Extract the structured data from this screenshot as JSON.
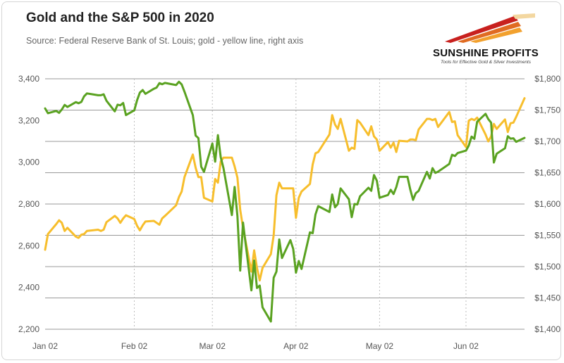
{
  "title": "Gold and the S&P 500 in 2020",
  "subtitle": "Source: Federal Reserve Bank of St. Louis; gold - yellow line, right axis",
  "logo": {
    "name": "SUNSHINE PROFITS",
    "tagline": "Tools for Effective Gold & Silver Investments"
  },
  "colors": {
    "gold_line": "#f7be2c",
    "sp500_line": "#5aa221",
    "grid": "#9a9a9a",
    "plot_bg": "#ffffff",
    "logo_red": "#c8201e"
  },
  "chart_data": {
    "type": "line",
    "title": "Gold and the S&P 500 in 2020",
    "x_tick_labels": [
      "Jan 02",
      "Feb 02",
      "Mar 02",
      "Apr 02",
      "May 02",
      "Jun 02"
    ],
    "x_range": [
      "2020-01-02",
      "2020-06-22"
    ],
    "left_axis": {
      "ylim": [
        2200,
        3400
      ],
      "ticks": [
        2200,
        2400,
        2600,
        2800,
        3000,
        3200,
        3400
      ],
      "tick_labels": [
        "2,200",
        "2,400",
        "2,600",
        "2,800",
        "3,000",
        "3,200",
        "3,400"
      ]
    },
    "right_axis": {
      "ylim": [
        1400,
        1800
      ],
      "ticks": [
        1400,
        1450,
        1500,
        1550,
        1600,
        1650,
        1700,
        1750,
        1800
      ],
      "tick_labels": [
        "$1,400",
        "$1,450",
        "$1,500",
        "$1,550",
        "$1,600",
        "$1,650",
        "$1,700",
        "$1,750",
        "$1,800"
      ]
    },
    "grid": true,
    "legend": "none",
    "series": [
      {
        "axis": "left",
        "color": "#5aa221",
        "points": [
          [
            "2020-01-02",
            3258
          ],
          [
            "2020-01-03",
            3235
          ],
          [
            "2020-01-06",
            3246
          ],
          [
            "2020-01-07",
            3237
          ],
          [
            "2020-01-08",
            3253
          ],
          [
            "2020-01-09",
            3275
          ],
          [
            "2020-01-10",
            3265
          ],
          [
            "2020-01-13",
            3288
          ],
          [
            "2020-01-14",
            3283
          ],
          [
            "2020-01-15",
            3289
          ],
          [
            "2020-01-16",
            3316
          ],
          [
            "2020-01-17",
            3330
          ],
          [
            "2020-01-21",
            3321
          ],
          [
            "2020-01-22",
            3321
          ],
          [
            "2020-01-23",
            3326
          ],
          [
            "2020-01-24",
            3295
          ],
          [
            "2020-01-27",
            3244
          ],
          [
            "2020-01-28",
            3276
          ],
          [
            "2020-01-29",
            3273
          ],
          [
            "2020-01-30",
            3284
          ],
          [
            "2020-01-31",
            3226
          ],
          [
            "2020-02-03",
            3249
          ],
          [
            "2020-02-04",
            3298
          ],
          [
            "2020-02-05",
            3334
          ],
          [
            "2020-02-06",
            3346
          ],
          [
            "2020-02-07",
            3328
          ],
          [
            "2020-02-10",
            3352
          ],
          [
            "2020-02-11",
            3358
          ],
          [
            "2020-02-12",
            3379
          ],
          [
            "2020-02-13",
            3374
          ],
          [
            "2020-02-14",
            3380
          ],
          [
            "2020-02-18",
            3370
          ],
          [
            "2020-02-19",
            3386
          ],
          [
            "2020-02-20",
            3373
          ],
          [
            "2020-02-21",
            3338
          ],
          [
            "2020-02-24",
            3226
          ],
          [
            "2020-02-25",
            3128
          ],
          [
            "2020-02-26",
            3116
          ],
          [
            "2020-02-27",
            2979
          ],
          [
            "2020-02-28",
            2954
          ],
          [
            "2020-03-02",
            3090
          ],
          [
            "2020-03-03",
            3003
          ],
          [
            "2020-03-04",
            3130
          ],
          [
            "2020-03-05",
            3024
          ],
          [
            "2020-03-06",
            2972
          ],
          [
            "2020-03-09",
            2747
          ],
          [
            "2020-03-10",
            2882
          ],
          [
            "2020-03-11",
            2741
          ],
          [
            "2020-03-12",
            2481
          ],
          [
            "2020-03-13",
            2711
          ],
          [
            "2020-03-16",
            2386
          ],
          [
            "2020-03-17",
            2529
          ],
          [
            "2020-03-18",
            2398
          ],
          [
            "2020-03-19",
            2409
          ],
          [
            "2020-03-20",
            2305
          ],
          [
            "2020-03-23",
            2237
          ],
          [
            "2020-03-24",
            2447
          ],
          [
            "2020-03-25",
            2476
          ],
          [
            "2020-03-26",
            2630
          ],
          [
            "2020-03-27",
            2541
          ],
          [
            "2020-03-30",
            2627
          ],
          [
            "2020-03-31",
            2585
          ],
          [
            "2020-04-01",
            2471
          ],
          [
            "2020-04-02",
            2527
          ],
          [
            "2020-04-03",
            2489
          ],
          [
            "2020-04-06",
            2664
          ],
          [
            "2020-04-07",
            2660
          ],
          [
            "2020-04-08",
            2750
          ],
          [
            "2020-04-09",
            2790
          ],
          [
            "2020-04-13",
            2762
          ],
          [
            "2020-04-14",
            2846
          ],
          [
            "2020-04-15",
            2784
          ],
          [
            "2020-04-16",
            2800
          ],
          [
            "2020-04-17",
            2875
          ],
          [
            "2020-04-20",
            2823
          ],
          [
            "2020-04-21",
            2737
          ],
          [
            "2020-04-22",
            2800
          ],
          [
            "2020-04-23",
            2798
          ],
          [
            "2020-04-24",
            2837
          ],
          [
            "2020-04-27",
            2878
          ],
          [
            "2020-04-28",
            2863
          ],
          [
            "2020-04-29",
            2939
          ],
          [
            "2020-04-30",
            2912
          ],
          [
            "2020-05-01",
            2830
          ],
          [
            "2020-05-04",
            2843
          ],
          [
            "2020-05-05",
            2868
          ],
          [
            "2020-05-06",
            2848
          ],
          [
            "2020-05-07",
            2881
          ],
          [
            "2020-05-08",
            2930
          ],
          [
            "2020-05-11",
            2930
          ],
          [
            "2020-05-12",
            2870
          ],
          [
            "2020-05-13",
            2820
          ],
          [
            "2020-05-14",
            2852
          ],
          [
            "2020-05-15",
            2863
          ],
          [
            "2020-05-18",
            2954
          ],
          [
            "2020-05-19",
            2922
          ],
          [
            "2020-05-20",
            2972
          ],
          [
            "2020-05-21",
            2949
          ],
          [
            "2020-05-22",
            2955
          ],
          [
            "2020-05-26",
            2992
          ],
          [
            "2020-05-27",
            3036
          ],
          [
            "2020-05-28",
            3030
          ],
          [
            "2020-05-29",
            3044
          ],
          [
            "2020-06-01",
            3056
          ],
          [
            "2020-06-02",
            3080
          ],
          [
            "2020-06-03",
            3123
          ],
          [
            "2020-06-04",
            3112
          ],
          [
            "2020-06-05",
            3194
          ],
          [
            "2020-06-08",
            3232
          ],
          [
            "2020-06-09",
            3207
          ],
          [
            "2020-06-10",
            3190
          ],
          [
            "2020-06-11",
            2999
          ],
          [
            "2020-06-12",
            3041
          ],
          [
            "2020-06-15",
            3067
          ],
          [
            "2020-06-16",
            3125
          ],
          [
            "2020-06-17",
            3113
          ],
          [
            "2020-06-18",
            3115
          ],
          [
            "2020-06-19",
            3098
          ],
          [
            "2020-06-22",
            3117
          ]
        ]
      },
      {
        "axis": "right",
        "color": "#f7be2c",
        "points": [
          [
            "2020-01-02",
            1527
          ],
          [
            "2020-01-03",
            1552
          ],
          [
            "2020-01-06",
            1568
          ],
          [
            "2020-01-07",
            1574
          ],
          [
            "2020-01-08",
            1570
          ],
          [
            "2020-01-09",
            1557
          ],
          [
            "2020-01-10",
            1562
          ],
          [
            "2020-01-13",
            1548
          ],
          [
            "2020-01-14",
            1546
          ],
          [
            "2020-01-15",
            1551
          ],
          [
            "2020-01-16",
            1552
          ],
          [
            "2020-01-17",
            1557
          ],
          [
            "2020-01-21",
            1559
          ],
          [
            "2020-01-22",
            1557
          ],
          [
            "2020-01-23",
            1559
          ],
          [
            "2020-01-24",
            1571
          ],
          [
            "2020-01-27",
            1581
          ],
          [
            "2020-01-28",
            1577
          ],
          [
            "2020-01-29",
            1570
          ],
          [
            "2020-01-30",
            1577
          ],
          [
            "2020-01-31",
            1582
          ],
          [
            "2020-02-03",
            1576
          ],
          [
            "2020-02-04",
            1565
          ],
          [
            "2020-02-05",
            1558
          ],
          [
            "2020-02-06",
            1566
          ],
          [
            "2020-02-07",
            1572
          ],
          [
            "2020-02-10",
            1573
          ],
          [
            "2020-02-11",
            1570
          ],
          [
            "2020-02-12",
            1567
          ],
          [
            "2020-02-13",
            1577
          ],
          [
            "2020-02-14",
            1581
          ],
          [
            "2020-02-18",
            1598
          ],
          [
            "2020-02-19",
            1611
          ],
          [
            "2020-02-20",
            1620
          ],
          [
            "2020-02-21",
            1643
          ],
          [
            "2020-02-24",
            1679
          ],
          [
            "2020-02-25",
            1658
          ],
          [
            "2020-02-26",
            1643
          ],
          [
            "2020-02-27",
            1643
          ],
          [
            "2020-02-28",
            1610
          ],
          [
            "2020-03-02",
            1604
          ],
          [
            "2020-03-03",
            1640
          ],
          [
            "2020-03-04",
            1634
          ],
          [
            "2020-03-05",
            1668
          ],
          [
            "2020-03-06",
            1674
          ],
          [
            "2020-03-09",
            1674
          ],
          [
            "2020-03-10",
            1660
          ],
          [
            "2020-03-11",
            1642
          ],
          [
            "2020-03-12",
            1591
          ],
          [
            "2020-03-13",
            1562
          ],
          [
            "2020-03-16",
            1492
          ],
          [
            "2020-03-17",
            1526
          ],
          [
            "2020-03-18",
            1498
          ],
          [
            "2020-03-19",
            1478
          ],
          [
            "2020-03-20",
            1498
          ],
          [
            "2020-03-23",
            1520
          ],
          [
            "2020-03-24",
            1550
          ],
          [
            "2020-03-25",
            1614
          ],
          [
            "2020-03-26",
            1634
          ],
          [
            "2020-03-27",
            1625
          ],
          [
            "2020-03-30",
            1625
          ],
          [
            "2020-03-31",
            1625
          ],
          [
            "2020-04-01",
            1578
          ],
          [
            "2020-04-02",
            1610
          ],
          [
            "2020-04-03",
            1620
          ],
          [
            "2020-04-06",
            1632
          ],
          [
            "2020-04-07",
            1663
          ],
          [
            "2020-04-08",
            1681
          ],
          [
            "2020-04-09",
            1683
          ],
          [
            "2020-04-13",
            1711
          ],
          [
            "2020-04-14",
            1742
          ],
          [
            "2020-04-15",
            1727
          ],
          [
            "2020-04-16",
            1720
          ],
          [
            "2020-04-17",
            1736
          ],
          [
            "2020-04-20",
            1685
          ],
          [
            "2020-04-21",
            1690
          ],
          [
            "2020-04-22",
            1688
          ],
          [
            "2020-04-23",
            1734
          ],
          [
            "2020-04-24",
            1730
          ],
          [
            "2020-04-27",
            1710
          ],
          [
            "2020-04-28",
            1724
          ],
          [
            "2020-04-29",
            1708
          ],
          [
            "2020-04-30",
            1703
          ],
          [
            "2020-05-01",
            1685
          ],
          [
            "2020-05-04",
            1699
          ],
          [
            "2020-05-05",
            1690
          ],
          [
            "2020-05-06",
            1698
          ],
          [
            "2020-05-07",
            1683
          ],
          [
            "2020-05-08",
            1701
          ],
          [
            "2020-05-11",
            1700
          ],
          [
            "2020-05-12",
            1703
          ],
          [
            "2020-05-13",
            1703
          ],
          [
            "2020-05-14",
            1702
          ],
          [
            "2020-05-15",
            1719
          ],
          [
            "2020-05-18",
            1736
          ],
          [
            "2020-05-19",
            1736
          ],
          [
            "2020-05-20",
            1734
          ],
          [
            "2020-05-21",
            1736
          ],
          [
            "2020-05-22",
            1723
          ],
          [
            "2020-05-26",
            1747
          ],
          [
            "2020-05-27",
            1731
          ],
          [
            "2020-05-28",
            1732
          ],
          [
            "2020-05-29",
            1710
          ],
          [
            "2020-06-01",
            1691
          ],
          [
            "2020-06-02",
            1733
          ],
          [
            "2020-06-03",
            1736
          ],
          [
            "2020-06-04",
            1734
          ],
          [
            "2020-06-05",
            1738
          ],
          [
            "2020-06-08",
            1711
          ],
          [
            "2020-06-09",
            1700
          ],
          [
            "2020-06-10",
            1708
          ],
          [
            "2020-06-11",
            1728
          ],
          [
            "2020-06-12",
            1720
          ],
          [
            "2020-06-15",
            1735
          ],
          [
            "2020-06-16",
            1715
          ],
          [
            "2020-06-17",
            1729
          ],
          [
            "2020-06-18",
            1730
          ],
          [
            "2020-06-19",
            1739
          ],
          [
            "2020-06-22",
            1769
          ]
        ]
      }
    ]
  }
}
